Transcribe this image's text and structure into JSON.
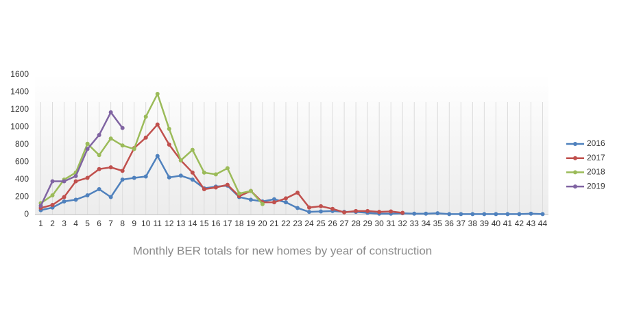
{
  "chart_data": {
    "type": "line",
    "title": "Monthly BER totals for new homes by year of construction",
    "x": [
      1,
      2,
      3,
      4,
      5,
      6,
      7,
      8,
      9,
      10,
      11,
      12,
      13,
      14,
      15,
      16,
      17,
      18,
      19,
      20,
      21,
      22,
      23,
      24,
      25,
      26,
      27,
      28,
      29,
      30,
      31,
      32,
      33,
      34,
      35,
      36,
      37,
      38,
      39,
      40,
      41,
      42,
      43,
      44
    ],
    "xlim": [
      0.5,
      44.5
    ],
    "ylim": [
      0,
      1600
    ],
    "yticks": [
      0,
      200,
      400,
      600,
      800,
      1000,
      1200,
      1400,
      1600
    ],
    "grid": true,
    "legend": "right",
    "series": [
      {
        "name": "2016",
        "color": "#4f81bd",
        "values": [
          50,
          80,
          150,
          170,
          220,
          290,
          200,
          400,
          420,
          435,
          670,
          425,
          445,
          400,
          300,
          320,
          330,
          200,
          170,
          150,
          175,
          140,
          75,
          30,
          35,
          40,
          30,
          30,
          20,
          10,
          10,
          15,
          10,
          10,
          15,
          5,
          5,
          5,
          5,
          5,
          5,
          5,
          10,
          5
        ]
      },
      {
        "name": "2017",
        "color": "#c0504d",
        "values": [
          75,
          110,
          200,
          380,
          420,
          520,
          540,
          500,
          760,
          880,
          1030,
          800,
          620,
          480,
          290,
          310,
          340,
          210,
          270,
          140,
          140,
          185,
          250,
          80,
          95,
          65,
          25,
          40,
          40,
          30,
          35,
          20,
          null,
          null,
          null,
          null,
          null,
          null,
          null,
          null,
          null,
          null,
          null,
          null
        ]
      },
      {
        "name": "2018",
        "color": "#9bbb59",
        "values": [
          130,
          220,
          400,
          480,
          810,
          680,
          870,
          790,
          750,
          1120,
          1380,
          980,
          620,
          740,
          480,
          460,
          530,
          240,
          270,
          120,
          null,
          null,
          null,
          null,
          null,
          null,
          null,
          null,
          null,
          null,
          null,
          null,
          null,
          null,
          null,
          null,
          null,
          null,
          null,
          null,
          null,
          null,
          null,
          null
        ]
      },
      {
        "name": "2019",
        "color": "#8064a2",
        "values": [
          100,
          380,
          380,
          440,
          750,
          910,
          1170,
          990,
          null,
          null,
          null,
          null,
          null,
          null,
          null,
          null,
          null,
          null,
          null,
          null,
          null,
          null,
          null,
          null,
          null,
          null,
          null,
          null,
          null,
          null,
          null,
          null,
          null,
          null,
          null,
          null,
          null,
          null,
          null,
          null,
          null,
          null,
          null,
          null
        ]
      }
    ]
  }
}
